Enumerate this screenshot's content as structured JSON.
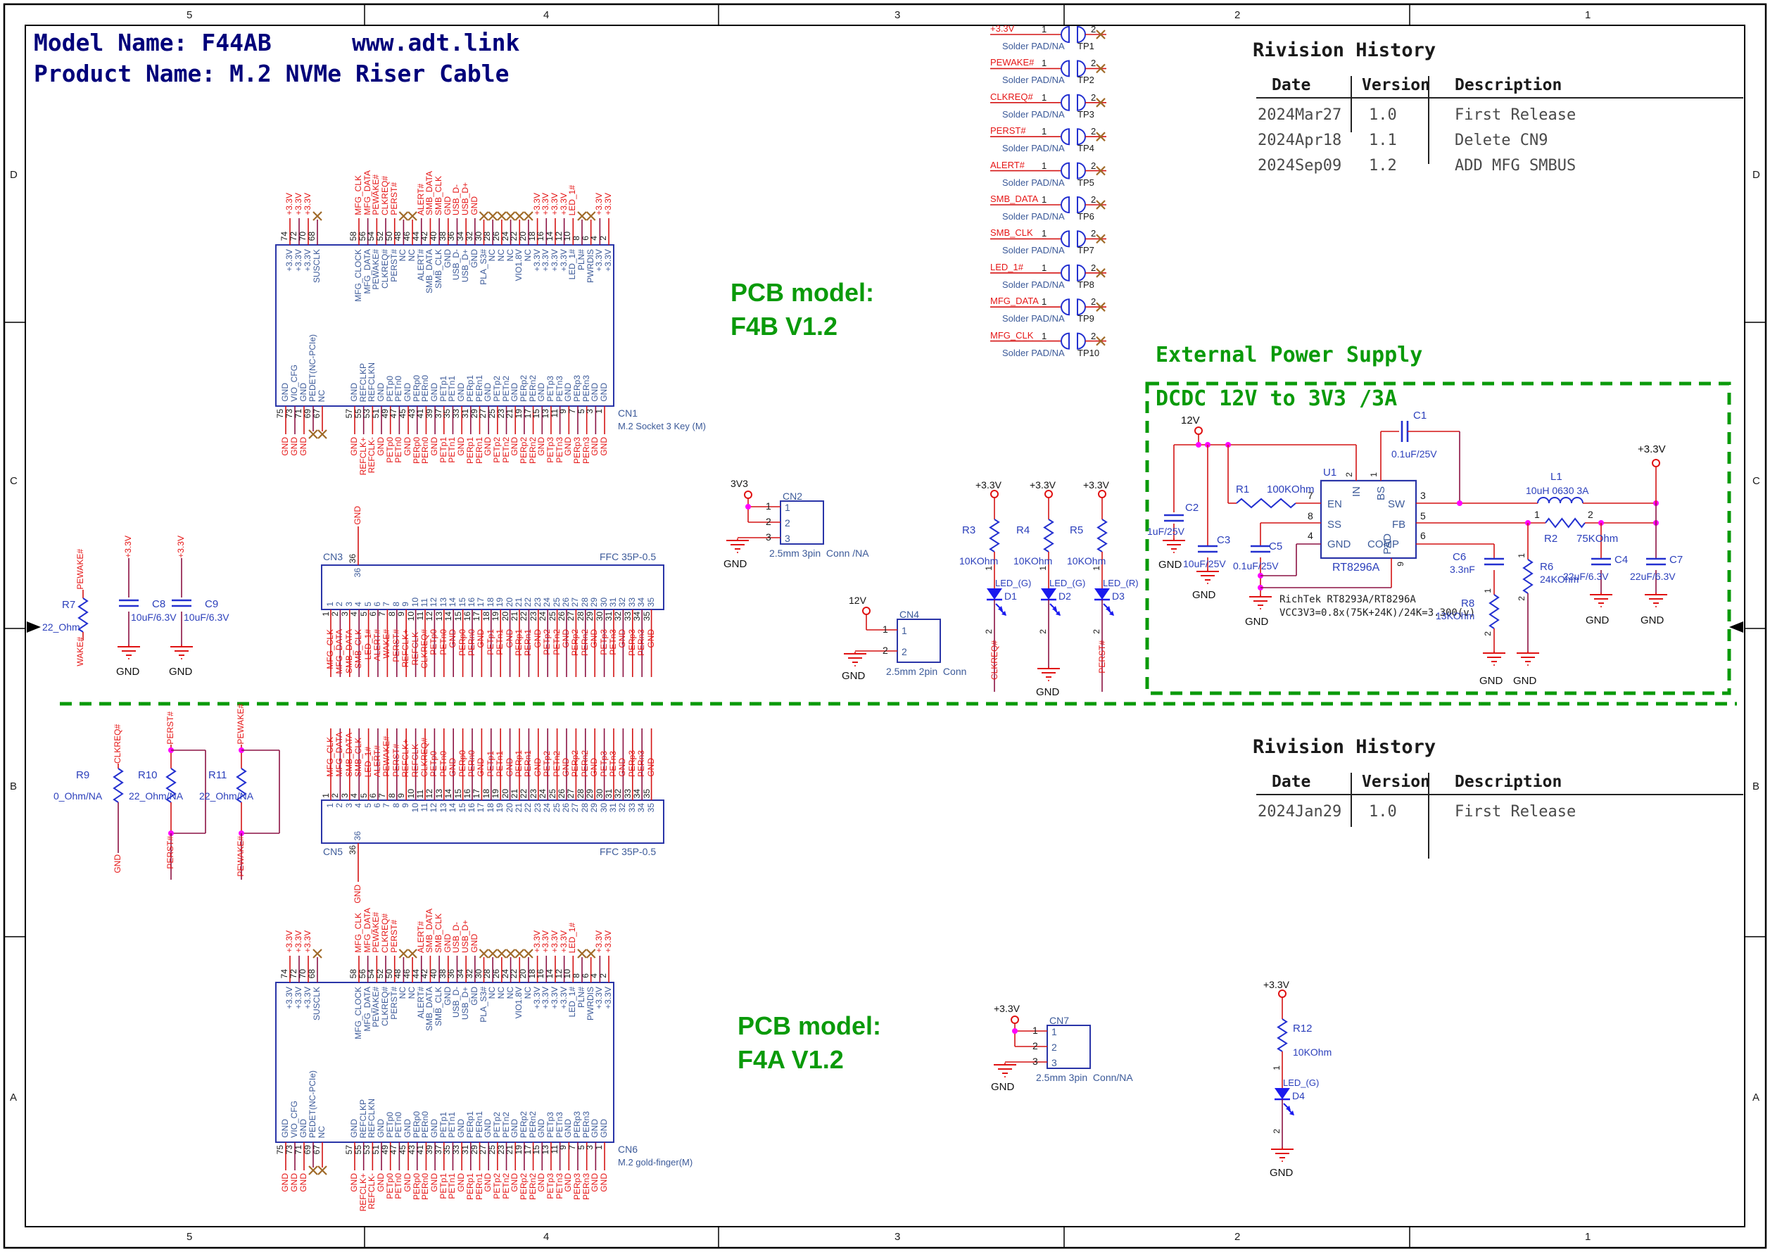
{
  "header": {
    "model": "Model Name: F44AB",
    "website": "www.adt.link",
    "product": "Product Name: M.2 NVMe Riser Cable"
  },
  "pcb_model_top": {
    "line1": "PCB model:",
    "line2": "F4B V1.2"
  },
  "pcb_model_bottom": {
    "line1": "PCB model:",
    "line2": "F4A V1.2"
  },
  "revision_history_top": {
    "title": "Rivision History",
    "columns": [
      "Date",
      "Version",
      "Description"
    ],
    "rows": [
      [
        "2024Mar27",
        "1.0",
        "First Release"
      ],
      [
        "2024Apr18",
        "1.1",
        "Delete CN9"
      ],
      [
        "2024Sep09",
        "1.2",
        "ADD MFG SMBUS"
      ]
    ]
  },
  "revision_history_bottom": {
    "title": "Rivision History",
    "columns": [
      "Date",
      "Version",
      "Description"
    ],
    "rows": [
      [
        "2024Jan29",
        "1.0",
        "First Release"
      ]
    ]
  },
  "sheet": {
    "border_cols": [
      "5",
      "4",
      "3",
      "2",
      "1"
    ],
    "border_rows": [
      "D",
      "C",
      "B",
      "A"
    ]
  },
  "test_points": {
    "pad_label": "Solder PAD/NA",
    "pin1": "1",
    "pin2": "2",
    "items": [
      {
        "ref": "TP1",
        "net": "+3.3V"
      },
      {
        "ref": "TP2",
        "net": "PEWAKE#"
      },
      {
        "ref": "TP3",
        "net": "CLKREQ#"
      },
      {
        "ref": "TP4",
        "net": "PERST#"
      },
      {
        "ref": "TP5",
        "net": "ALERT#"
      },
      {
        "ref": "TP6",
        "net": "SMB_DATA"
      },
      {
        "ref": "TP7",
        "net": "SMB_CLK"
      },
      {
        "ref": "TP8",
        "net": "LED_1#"
      },
      {
        "ref": "TP9",
        "net": "MFG_DATA"
      },
      {
        "ref": "TP10",
        "net": "MFG_CLK"
      }
    ]
  },
  "m2": {
    "cn1": {
      "ref": "CN1",
      "name": "M.2 Socket 3 Key (M)"
    },
    "cn6": {
      "ref": "CN6",
      "name": "M.2 gold-finger(M)"
    },
    "top_left": [
      {
        "pin": "74",
        "label": "+3.3V",
        "net": "+3.3V"
      },
      {
        "pin": "72",
        "label": "+3.3V",
        "net": "+3.3V"
      },
      {
        "pin": "70",
        "label": "+3.3V",
        "net": "+3.3V"
      },
      {
        "pin": "68",
        "label": "SUSCLK",
        "net": "X"
      }
    ],
    "top_right": [
      {
        "pin": "58",
        "label": "MFG_CLOCK",
        "net": "MFG_CLK"
      },
      {
        "pin": "56",
        "label": "MFG_DATA",
        "net": "MFG_DATA"
      },
      {
        "pin": "54",
        "label": "PEWAKE#",
        "net": "PEWAKE#"
      },
      {
        "pin": "52",
        "label": "CLKREQ#",
        "net": "CLKREQ#"
      },
      {
        "pin": "50",
        "label": "PERST#",
        "net": "PERST#"
      },
      {
        "pin": "48",
        "label": "NC",
        "net": "X"
      },
      {
        "pin": "46",
        "label": "NC",
        "net": "X"
      },
      {
        "pin": "44",
        "label": "ALERT#",
        "net": "ALERT#"
      },
      {
        "pin": "42",
        "label": "SMB_DATA",
        "net": "SMB_DATA"
      },
      {
        "pin": "40",
        "label": "SMB_CLK",
        "net": "SMB_CLK"
      },
      {
        "pin": "38",
        "label": "GND",
        "net": "GND"
      },
      {
        "pin": "36",
        "label": "USB_D-",
        "net": "USB_D-"
      },
      {
        "pin": "34",
        "label": "USB_D+",
        "net": "USB_D+"
      },
      {
        "pin": "32",
        "label": "GND",
        "net": "GND"
      },
      {
        "pin": "30",
        "label": "PLA_S3#",
        "net": "X"
      },
      {
        "pin": "28",
        "label": "NC",
        "net": "X"
      },
      {
        "pin": "26",
        "label": "NC",
        "net": "X"
      },
      {
        "pin": "24",
        "label": "NC",
        "net": "X"
      },
      {
        "pin": "22",
        "label": "VIO1.8V",
        "net": "X"
      },
      {
        "pin": "20",
        "label": "NC",
        "net": "X"
      },
      {
        "pin": "18",
        "label": "+3.3V",
        "net": "+3.3V"
      },
      {
        "pin": "16",
        "label": "+3.3V",
        "net": "+3.3V"
      },
      {
        "pin": "14",
        "label": "+3.3V",
        "net": "+3.3V"
      },
      {
        "pin": "12",
        "label": "+3.3V",
        "net": "+3.3V"
      },
      {
        "pin": "10",
        "label": "LED_1#",
        "net": "LED_1#"
      },
      {
        "pin": "8",
        "label": "PLN#",
        "net": "X"
      },
      {
        "pin": "6",
        "label": "PWRDIS",
        "net": "X"
      },
      {
        "pin": "4",
        "label": "+3.3V",
        "net": "+3.3V"
      },
      {
        "pin": "2",
        "label": "+3.3V",
        "net": "+3.3V"
      }
    ],
    "bottom_left": [
      {
        "pin": "75",
        "label": "GND",
        "net": "GND"
      },
      {
        "pin": "73",
        "label": "VIO_CFG",
        "net": "GND"
      },
      {
        "pin": "71",
        "label": "GND",
        "net": "GND"
      },
      {
        "pin": "69",
        "label": "PEDET(NC-PCIe)",
        "net": "X"
      },
      {
        "pin": "67",
        "label": "NC",
        "net": "X"
      }
    ],
    "bottom_right": [
      {
        "pin": "57",
        "label": "GND",
        "net": "GND"
      },
      {
        "pin": "55",
        "label": "REFCLKP",
        "net": "REFCLK+"
      },
      {
        "pin": "53",
        "label": "REFCLKN",
        "net": "REFCLK-"
      },
      {
        "pin": "51",
        "label": "GND",
        "net": "GND"
      },
      {
        "pin": "49",
        "label": "PETp0",
        "net": "PETp0"
      },
      {
        "pin": "47",
        "label": "PETn0",
        "net": "PETn0"
      },
      {
        "pin": "45",
        "label": "GND",
        "net": "GND"
      },
      {
        "pin": "43",
        "label": "PERp0",
        "net": "PERp0"
      },
      {
        "pin": "41",
        "label": "PERn0",
        "net": "PERn0"
      },
      {
        "pin": "39",
        "label": "GND",
        "net": "GND"
      },
      {
        "pin": "37",
        "label": "PETp1",
        "net": "PETp1"
      },
      {
        "pin": "35",
        "label": "PETn1",
        "net": "PETn1"
      },
      {
        "pin": "33",
        "label": "GND",
        "net": "GND"
      },
      {
        "pin": "31",
        "label": "PERp1",
        "net": "PERp1"
      },
      {
        "pin": "29",
        "label": "PERn1",
        "net": "PERn1"
      },
      {
        "pin": "27",
        "label": "GND",
        "net": "GND"
      },
      {
        "pin": "25",
        "label": "PETp2",
        "net": "PETp2"
      },
      {
        "pin": "23",
        "label": "PETn2",
        "net": "PETn2"
      },
      {
        "pin": "21",
        "label": "GND",
        "net": "GND"
      },
      {
        "pin": "19",
        "label": "PERp2",
        "net": "PERp2"
      },
      {
        "pin": "17",
        "label": "PERn2",
        "net": "PERn2"
      },
      {
        "pin": "15",
        "label": "GND",
        "net": "GND"
      },
      {
        "pin": "13",
        "label": "PETp3",
        "net": "PETp3"
      },
      {
        "pin": "11",
        "label": "PETn3",
        "net": "PETn3"
      },
      {
        "pin": "9",
        "label": "GND",
        "net": "GND"
      },
      {
        "pin": "7",
        "label": "PERp3",
        "net": "PERp3"
      },
      {
        "pin": "5",
        "label": "PERn3",
        "net": "PERn3"
      },
      {
        "pin": "3",
        "label": "GND",
        "net": "GND"
      },
      {
        "pin": "1",
        "label": "GND",
        "net": "GND"
      }
    ]
  },
  "ffc": {
    "part": "FFC 35P-0.5",
    "pin36": "36",
    "pin36_net": "GND",
    "cn3": {
      "ref": "CN3",
      "nets": [
        "MFG_CLK",
        "MFG_DATA",
        "SMB_DATA",
        "SMB_CLK",
        "LED_1#",
        "ALERT#",
        "WAKE#",
        "PERST#",
        "REFCLK+",
        "REFCLK-",
        "CLKREQ#",
        "PETp0",
        "PETn0",
        "GND",
        "PERp0",
        "PERn0",
        "GND",
        "PETp1",
        "PETn1",
        "GND",
        "PERp1",
        "PERn1",
        "GND",
        "PETp2",
        "PETn2",
        "GND",
        "PERp2",
        "PERn2",
        "GND",
        "PETp3",
        "PETn3",
        "GND",
        "PERp3",
        "PERn3",
        "GND"
      ]
    },
    "cn5": {
      "ref": "CN5",
      "nets": [
        "MFG_CLK",
        "MFG_DATA",
        "SMB_DATA",
        "SMB_CLK",
        "LED_1#",
        "ALERT#",
        "PEWAKE#",
        "PERST#",
        "REFCLK+",
        "REFCLK-",
        "CLKREQ#",
        "PETp0",
        "PETn0",
        "GND",
        "PERp0",
        "PERn0",
        "GND",
        "PETp1",
        "PETn1",
        "GND",
        "PERp1",
        "PERn1",
        "GND",
        "PETp2",
        "PETn2",
        "GND",
        "PERp2",
        "PERn2",
        "GND",
        "PETp3",
        "PETn3",
        "GND",
        "PERp3",
        "PERn3",
        "GND"
      ]
    }
  },
  "psu": {
    "title": "External Power Supply",
    "subtitle": "DCDC 12V to 3V3 /3A",
    "note1": "RichTek RT8293A/RT8296A",
    "note2": "VCC3V3=0.8x(75K+24K)/24K=3.300(v)",
    "in_node": "12V",
    "out_node": "+3.3V",
    "gnd": "GND",
    "u1": {
      "ref": "U1",
      "part": "RT8296A",
      "left_pins": [
        {
          "num": "7",
          "name": "EN"
        },
        {
          "num": "8",
          "name": "SS"
        },
        {
          "num": "4",
          "name": "GND"
        }
      ],
      "top_pins": [
        {
          "num": "2",
          "name": "IN"
        },
        {
          "num": "1",
          "name": "BS"
        }
      ],
      "right_pins": [
        {
          "num": "3",
          "name": "SW"
        },
        {
          "num": "5",
          "name": "FB"
        },
        {
          "num": "6",
          "name": "COMP"
        }
      ],
      "bottom_pins": [
        {
          "num": "9",
          "name": "PAD"
        }
      ]
    },
    "components": {
      "c1": {
        "ref": "C1",
        "value": "0.1uF/25V"
      },
      "c2": {
        "ref": "C2",
        "value": "1uF/25V"
      },
      "c3": {
        "ref": "C3",
        "value": "10uF/25V"
      },
      "c5": {
        "ref": "C5",
        "value": "0.1uF/25V"
      },
      "c6": {
        "ref": "C6",
        "value": "3.3nF"
      },
      "c4": {
        "ref": "C4",
        "value": "22uF/6.3V"
      },
      "c7": {
        "ref": "C7",
        "value": "22uF/6.3V"
      },
      "r1": {
        "ref": "R1",
        "value": "100KOhm"
      },
      "r2": {
        "ref": "R2",
        "value": "75KOhm"
      },
      "r6": {
        "ref": "R6",
        "value": "24KOhm"
      },
      "r8": {
        "ref": "R8",
        "value": "13KOhm"
      },
      "l1": {
        "ref": "L1",
        "value": "10uH 0630 3A"
      }
    }
  },
  "led_circuits": {
    "top_net": "+3.3V",
    "pin1": "1",
    "pin2": "2",
    "gnd": "GND",
    "items": [
      {
        "res": "R3",
        "rval": "10KOhm",
        "led": "D1",
        "ltype": "LED_(G)",
        "bottom": "CLKREQ#",
        "bottom_kind": "net"
      },
      {
        "res": "R4",
        "rval": "10KOhm",
        "led": "D2",
        "ltype": "LED_(G)",
        "bottom": "GND",
        "bottom_kind": "gnd"
      },
      {
        "res": "R5",
        "rval": "10KOhm",
        "led": "D3",
        "ltype": "LED_(R)",
        "bottom": "PERST#",
        "bottom_kind": "net"
      },
      {
        "res": "R12",
        "rval": "10KOhm",
        "led": "D4",
        "ltype": "LED_(G)",
        "bottom": "GND",
        "bottom_kind": "gnd"
      }
    ]
  },
  "small_connectors": [
    {
      "ref": "CN2",
      "top_net": "3V3",
      "pins": [
        "1",
        "2",
        "3"
      ],
      "desc": "2.5mm 3pin  Conn /NA",
      "gnd": "GND"
    },
    {
      "ref": "CN4",
      "top_net": "12V",
      "pins": [
        "1",
        "2"
      ],
      "desc": "2.5mm 2pin  Conn",
      "gnd": "GND"
    },
    {
      "ref": "CN7",
      "top_net": "+3.3V",
      "pins": [
        "1",
        "2",
        "3"
      ],
      "desc": "2.5mm 3pin  Conn/NA",
      "gnd": "GND"
    }
  ],
  "discretes": {
    "r7": {
      "ref": "R7",
      "value": "22_Ohm",
      "top": "PEWAKE#",
      "bottom": "WAKE#"
    },
    "c8": {
      "ref": "C8",
      "value": "10uF/6.3V",
      "top": "+3.3V",
      "gnd": "GND"
    },
    "c9": {
      "ref": "C9",
      "value": "10uF/6.3V",
      "top": "+3.3V",
      "gnd": "GND"
    },
    "r9": {
      "ref": "R9",
      "value": "0_Ohm/NA",
      "top": "CLKREQ#",
      "bottom": "GND"
    },
    "r10": {
      "ref": "R10",
      "value": "22_Ohm/NA",
      "top": "PERST#",
      "bottom": "PERST#"
    },
    "r11": {
      "ref": "R11",
      "value": "22_Ohm/NA",
      "top": "PEWAKE#",
      "bottom": "PEWAKE#"
    }
  },
  "colors": {
    "wire_red": "#d41414",
    "wire_maroon": "#8c1243",
    "symbol_blue": "#2330d0",
    "box_blue": "#2a35a8",
    "green": "#0a9a0a",
    "junction": "#ff00ff",
    "nc_x": "#a06a28"
  }
}
